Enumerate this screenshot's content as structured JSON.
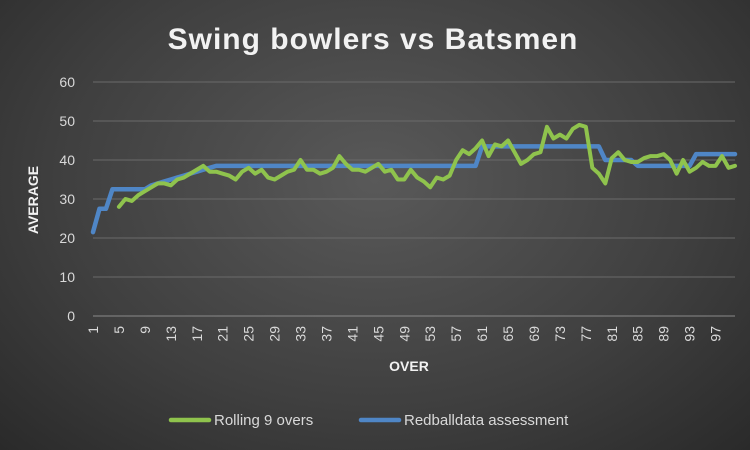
{
  "chart_data": {
    "type": "line",
    "title": "Swing bowlers vs Batsmen",
    "xlabel": "OVER",
    "ylabel": "AVERAGE",
    "xlim": [
      1,
      100
    ],
    "ylim": [
      0,
      60
    ],
    "y_ticks": [
      "0",
      "10",
      "20",
      "30",
      "40",
      "50",
      "60"
    ],
    "x_ticks": [
      "1",
      "5",
      "9",
      "13",
      "17",
      "21",
      "25",
      "29",
      "33",
      "37",
      "41",
      "45",
      "49",
      "53",
      "57",
      "61",
      "65",
      "69",
      "73",
      "77",
      "81",
      "85",
      "89",
      "93",
      "97"
    ],
    "grid": true,
    "legend_position": "bottom",
    "series": [
      {
        "name": "Rolling 9 overs",
        "color": "#8fc34d",
        "x": [
          5,
          6,
          7,
          8,
          9,
          10,
          11,
          12,
          13,
          14,
          15,
          16,
          17,
          18,
          19,
          20,
          21,
          22,
          23,
          24,
          25,
          26,
          27,
          28,
          29,
          30,
          31,
          32,
          33,
          34,
          35,
          36,
          37,
          38,
          39,
          40,
          41,
          42,
          43,
          44,
          45,
          46,
          47,
          48,
          49,
          50,
          51,
          52,
          53,
          54,
          55,
          56,
          57,
          58,
          59,
          60,
          61,
          62,
          63,
          64,
          65,
          66,
          67,
          68,
          69,
          70,
          71,
          72,
          73,
          74,
          75,
          76,
          77,
          78,
          79,
          80,
          81,
          82,
          83,
          84,
          85,
          86,
          87,
          88,
          89,
          90,
          91,
          92,
          93,
          94,
          95,
          96,
          97,
          98,
          99,
          100
        ],
        "y": [
          28,
          30,
          29.5,
          31,
          32,
          33,
          34,
          34,
          33.5,
          35,
          35.5,
          36.5,
          37.5,
          38.5,
          37,
          37,
          36.5,
          36,
          35,
          37,
          38,
          36.5,
          37.5,
          35.5,
          35,
          36,
          37,
          37.5,
          40,
          37.5,
          37.5,
          36.5,
          37,
          38,
          41,
          39,
          37.5,
          37.5,
          37,
          38,
          39,
          37,
          37.5,
          35,
          35,
          37.5,
          35.5,
          34.5,
          33,
          35.5,
          35,
          36,
          40,
          42.5,
          41.5,
          43,
          45,
          41,
          44,
          43.5,
          45,
          42,
          39,
          40,
          41.5,
          42,
          48.5,
          45.5,
          46.5,
          45.5,
          48,
          49,
          48.5,
          38,
          36.5,
          34,
          40.5,
          42,
          40,
          39.5,
          39.5,
          40.5,
          41,
          41,
          41.5,
          40,
          36.5,
          40,
          37,
          38,
          39.5,
          38.5,
          38.5,
          41,
          38,
          38.5
        ]
      },
      {
        "name": "Redballdata assessment",
        "color": "#4f86c6",
        "x": [
          1,
          2,
          3,
          4,
          5,
          6,
          7,
          8,
          9,
          10,
          11,
          12,
          13,
          14,
          15,
          16,
          17,
          18,
          19,
          20,
          21,
          22,
          23,
          24,
          25,
          26,
          27,
          28,
          29,
          30,
          31,
          32,
          33,
          34,
          35,
          36,
          37,
          38,
          39,
          40,
          41,
          42,
          43,
          44,
          45,
          46,
          47,
          48,
          49,
          50,
          51,
          52,
          53,
          54,
          55,
          56,
          57,
          58,
          59,
          60,
          61,
          62,
          63,
          64,
          65,
          66,
          67,
          68,
          69,
          70,
          71,
          72,
          73,
          74,
          75,
          76,
          77,
          78,
          79,
          80,
          81,
          82,
          83,
          84,
          85,
          86,
          87,
          88,
          89,
          90,
          91,
          92,
          93,
          94,
          95,
          96,
          97,
          98,
          99,
          100
        ],
        "y": [
          21.5,
          27.5,
          27.5,
          32.5,
          32.5,
          32.5,
          32.5,
          32.5,
          32.5,
          33.5,
          34,
          34.5,
          35,
          35.5,
          36,
          36.5,
          37,
          37.5,
          38,
          38.5,
          38.5,
          38.5,
          38.5,
          38.5,
          38.5,
          38.5,
          38.5,
          38.5,
          38.5,
          38.5,
          38.5,
          38.5,
          38.5,
          38.5,
          38.5,
          38.5,
          38.5,
          38.5,
          38.5,
          38.5,
          38.5,
          38.5,
          38.5,
          38.5,
          38.5,
          38.5,
          38.5,
          38.5,
          38.5,
          38.5,
          38.5,
          38.5,
          38.5,
          38.5,
          38.5,
          38.5,
          38.5,
          38.5,
          38.5,
          38.5,
          43.5,
          43.5,
          43.5,
          43.5,
          43.5,
          43.5,
          43.5,
          43.5,
          43.5,
          43.5,
          43.5,
          43.5,
          43.5,
          43.5,
          43.5,
          43.5,
          43.5,
          43.5,
          43.5,
          40,
          40,
          40,
          40,
          40,
          38.5,
          38.5,
          38.5,
          38.5,
          38.5,
          38.5,
          38.5,
          38.5,
          38.5,
          41.5,
          41.5,
          41.5,
          41.5,
          41.5,
          41.5,
          41.5
        ]
      }
    ]
  }
}
